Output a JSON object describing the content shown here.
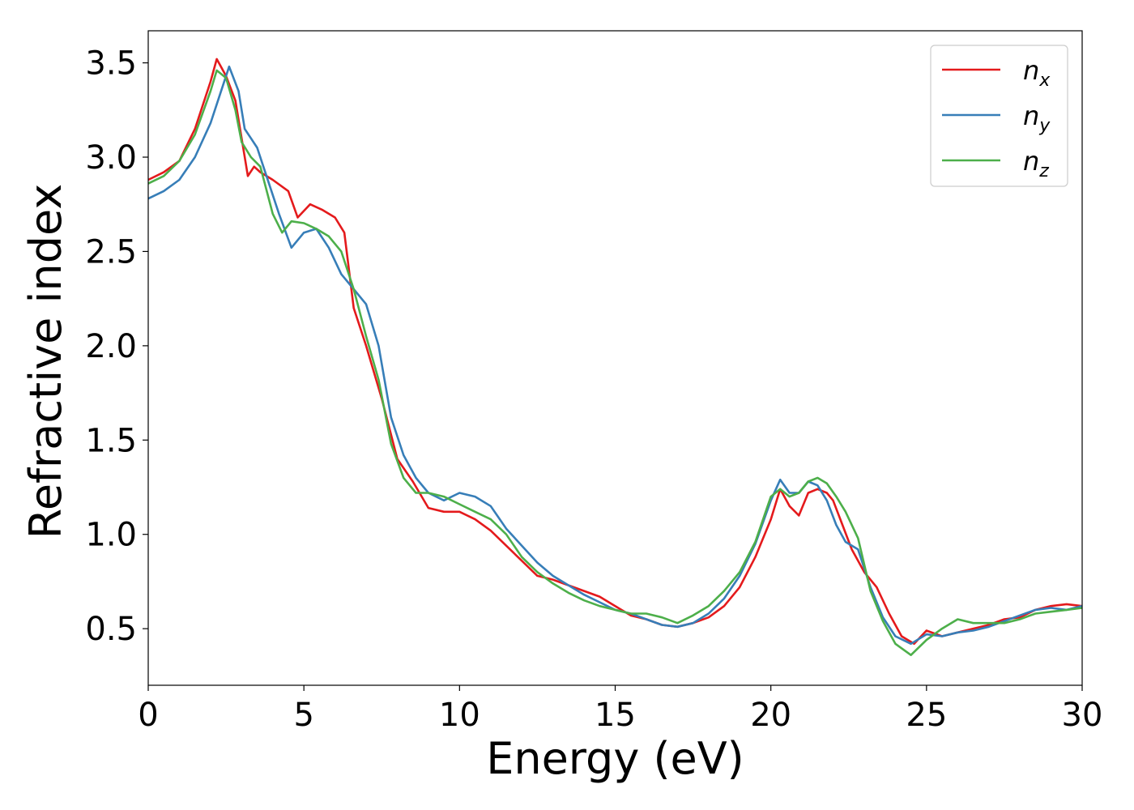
{
  "chart_data": {
    "type": "line",
    "title": "",
    "xlabel": "Energy (eV)",
    "ylabel": "Refractive index",
    "xlim": [
      0,
      30
    ],
    "ylim": [
      0.2,
      3.67
    ],
    "xticks": [
      0,
      5,
      10,
      15,
      20,
      25,
      30
    ],
    "yticks": [
      0.5,
      1.0,
      1.5,
      2.0,
      2.5,
      3.0,
      3.5
    ],
    "xtick_labels": [
      "0",
      "5",
      "10",
      "15",
      "20",
      "25",
      "30"
    ],
    "ytick_labels": [
      "0.5",
      "1.0",
      "1.5",
      "2.0",
      "2.5",
      "3.0",
      "3.5"
    ],
    "grid": false,
    "legend_position": "top-right",
    "series": [
      {
        "name": "n_x",
        "label_base": "n",
        "label_sub": "x",
        "color": "#e41a1c",
        "x": [
          0,
          0.5,
          1,
          1.5,
          2,
          2.2,
          2.5,
          2.8,
          3,
          3.2,
          3.4,
          3.6,
          4,
          4.5,
          4.8,
          5.2,
          5.6,
          6,
          6.3,
          6.6,
          7,
          7.5,
          8,
          8.5,
          9,
          9.5,
          10,
          10.5,
          11,
          11.5,
          12,
          12.5,
          13,
          13.5,
          14,
          14.5,
          15,
          15.5,
          16,
          16.5,
          17,
          17.5,
          18,
          18.5,
          19,
          19.5,
          20,
          20.3,
          20.6,
          20.9,
          21.2,
          21.5,
          21.8,
          22,
          22.3,
          22.6,
          23,
          23.4,
          23.8,
          24.2,
          24.6,
          25,
          25.5,
          26,
          26.5,
          27,
          27.5,
          28,
          28.5,
          29,
          29.5,
          30
        ],
        "y": [
          2.88,
          2.92,
          2.98,
          3.15,
          3.4,
          3.52,
          3.43,
          3.3,
          3.1,
          2.9,
          2.95,
          2.92,
          2.88,
          2.82,
          2.68,
          2.75,
          2.72,
          2.68,
          2.6,
          2.2,
          2.0,
          1.72,
          1.4,
          1.28,
          1.14,
          1.12,
          1.12,
          1.08,
          1.02,
          0.94,
          0.86,
          0.78,
          0.76,
          0.73,
          0.7,
          0.67,
          0.62,
          0.57,
          0.55,
          0.52,
          0.51,
          0.53,
          0.56,
          0.62,
          0.72,
          0.88,
          1.08,
          1.24,
          1.15,
          1.1,
          1.22,
          1.24,
          1.22,
          1.18,
          1.05,
          0.92,
          0.8,
          0.72,
          0.58,
          0.46,
          0.42,
          0.49,
          0.46,
          0.48,
          0.5,
          0.52,
          0.55,
          0.56,
          0.6,
          0.62,
          0.63,
          0.62
        ]
      },
      {
        "name": "n_y",
        "label_base": "n",
        "label_sub": "y",
        "color": "#377eb8",
        "x": [
          0,
          0.5,
          1,
          1.5,
          2,
          2.3,
          2.6,
          2.9,
          3.1,
          3.3,
          3.5,
          3.8,
          4.2,
          4.6,
          5,
          5.4,
          5.8,
          6.2,
          6.6,
          7,
          7.4,
          7.8,
          8.2,
          8.6,
          9,
          9.5,
          10,
          10.5,
          11,
          11.5,
          12,
          12.5,
          13,
          13.5,
          14,
          14.5,
          15,
          15.5,
          16,
          16.5,
          17,
          17.5,
          18,
          18.5,
          19,
          19.5,
          20,
          20.3,
          20.6,
          20.9,
          21.2,
          21.5,
          21.8,
          22.1,
          22.4,
          22.8,
          23.2,
          23.6,
          24,
          24.5,
          25,
          25.5,
          26,
          26.5,
          27,
          27.5,
          28,
          28.5,
          29,
          29.5,
          30
        ],
        "y": [
          2.78,
          2.82,
          2.88,
          3.0,
          3.18,
          3.33,
          3.48,
          3.35,
          3.15,
          3.1,
          3.05,
          2.9,
          2.7,
          2.52,
          2.6,
          2.62,
          2.52,
          2.38,
          2.3,
          2.22,
          2.0,
          1.62,
          1.42,
          1.3,
          1.22,
          1.18,
          1.22,
          1.2,
          1.15,
          1.03,
          0.94,
          0.85,
          0.78,
          0.73,
          0.68,
          0.64,
          0.6,
          0.58,
          0.55,
          0.52,
          0.51,
          0.53,
          0.58,
          0.66,
          0.78,
          0.95,
          1.18,
          1.29,
          1.22,
          1.22,
          1.28,
          1.26,
          1.18,
          1.05,
          0.96,
          0.92,
          0.72,
          0.56,
          0.46,
          0.42,
          0.47,
          0.46,
          0.48,
          0.49,
          0.51,
          0.54,
          0.57,
          0.6,
          0.61,
          0.6,
          0.62
        ]
      },
      {
        "name": "n_z",
        "label_base": "n",
        "label_sub": "z",
        "color": "#4daf4a",
        "x": [
          0,
          0.5,
          1,
          1.5,
          2,
          2.2,
          2.5,
          2.8,
          3,
          3.3,
          3.6,
          4,
          4.3,
          4.6,
          5,
          5.4,
          5.8,
          6.2,
          6.6,
          7,
          7.4,
          7.8,
          8.2,
          8.6,
          9,
          9.5,
          10,
          10.5,
          11,
          11.5,
          12,
          12.5,
          13,
          13.5,
          14,
          14.5,
          15,
          15.5,
          16,
          16.5,
          17,
          17.5,
          18,
          18.5,
          19,
          19.5,
          20,
          20.3,
          20.6,
          20.9,
          21.2,
          21.5,
          21.8,
          22.1,
          22.4,
          22.8,
          23.2,
          23.6,
          24,
          24.5,
          25,
          25.5,
          26,
          26.5,
          27,
          27.5,
          28,
          28.5,
          29,
          29.5,
          30
        ],
        "y": [
          2.86,
          2.9,
          2.98,
          3.12,
          3.35,
          3.46,
          3.42,
          3.25,
          3.08,
          3.0,
          2.95,
          2.7,
          2.6,
          2.66,
          2.65,
          2.62,
          2.58,
          2.5,
          2.3,
          2.05,
          1.82,
          1.48,
          1.3,
          1.22,
          1.22,
          1.2,
          1.16,
          1.12,
          1.08,
          1.0,
          0.88,
          0.8,
          0.74,
          0.69,
          0.65,
          0.62,
          0.6,
          0.58,
          0.58,
          0.56,
          0.53,
          0.57,
          0.62,
          0.7,
          0.8,
          0.96,
          1.2,
          1.24,
          1.2,
          1.22,
          1.28,
          1.3,
          1.27,
          1.2,
          1.12,
          0.98,
          0.7,
          0.54,
          0.42,
          0.36,
          0.44,
          0.5,
          0.55,
          0.53,
          0.53,
          0.53,
          0.55,
          0.58,
          0.59,
          0.6,
          0.61
        ]
      }
    ]
  }
}
